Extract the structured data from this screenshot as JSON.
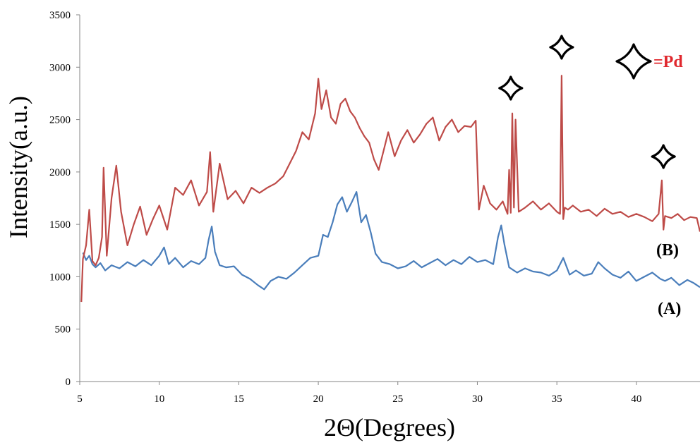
{
  "chart_data": {
    "type": "line",
    "title": "",
    "xlabel": "2Θ(Degrees)",
    "ylabel": "Intensity(a.u.)",
    "xlim": [
      5,
      44
    ],
    "ylim": [
      0,
      3500
    ],
    "x_ticks": [
      5,
      10,
      15,
      20,
      25,
      30,
      35,
      40
    ],
    "y_ticks": [
      0,
      500,
      1000,
      1500,
      2000,
      2500,
      3000,
      3500
    ],
    "grid": false,
    "series": [
      {
        "name": "(A)",
        "color": "#4A7EBB",
        "x": [
          5.2,
          5.4,
          5.6,
          5.8,
          6.0,
          6.3,
          6.6,
          7.0,
          7.5,
          8.0,
          8.5,
          9.0,
          9.5,
          10.0,
          10.3,
          10.6,
          11.0,
          11.5,
          12.0,
          12.5,
          12.9,
          13.1,
          13.3,
          13.5,
          13.8,
          14.2,
          14.7,
          15.2,
          15.7,
          16.2,
          16.6,
          17.0,
          17.5,
          18.0,
          18.5,
          19.0,
          19.5,
          20.0,
          20.3,
          20.6,
          20.9,
          21.2,
          21.5,
          21.8,
          22.1,
          22.4,
          22.7,
          23.0,
          23.3,
          23.6,
          24.0,
          24.5,
          25.0,
          25.5,
          26.0,
          26.5,
          27.0,
          27.5,
          28.0,
          28.5,
          29.0,
          29.5,
          30.0,
          30.5,
          31.0,
          31.3,
          31.5,
          31.7,
          32.0,
          32.5,
          33.0,
          33.5,
          34.0,
          34.5,
          35.0,
          35.4,
          35.8,
          36.2,
          36.7,
          37.2,
          37.6,
          38.0,
          38.5,
          39.0,
          39.5,
          40.0,
          40.5,
          41.0,
          41.5,
          41.8,
          42.2,
          42.7,
          43.2,
          43.6,
          44.0
        ],
        "values": [
          1230,
          1160,
          1200,
          1120,
          1090,
          1130,
          1060,
          1110,
          1080,
          1140,
          1100,
          1160,
          1110,
          1200,
          1280,
          1120,
          1180,
          1090,
          1150,
          1120,
          1180,
          1350,
          1480,
          1240,
          1110,
          1090,
          1100,
          1020,
          980,
          920,
          880,
          960,
          1000,
          980,
          1040,
          1110,
          1180,
          1200,
          1400,
          1380,
          1520,
          1690,
          1760,
          1620,
          1710,
          1810,
          1520,
          1590,
          1420,
          1220,
          1140,
          1120,
          1080,
          1100,
          1150,
          1090,
          1130,
          1170,
          1110,
          1160,
          1120,
          1190,
          1140,
          1160,
          1120,
          1380,
          1490,
          1310,
          1090,
          1040,
          1080,
          1050,
          1040,
          1010,
          1060,
          1180,
          1020,
          1060,
          1010,
          1030,
          1140,
          1080,
          1020,
          990,
          1050,
          960,
          1000,
          1040,
          980,
          960,
          990,
          920,
          970,
          940,
          900
        ]
      },
      {
        "name": "(B)",
        "color": "#BE4B48",
        "x": [
          5.1,
          5.2,
          5.4,
          5.6,
          5.8,
          6.0,
          6.2,
          6.4,
          6.5,
          6.7,
          7.0,
          7.3,
          7.6,
          8.0,
          8.4,
          8.8,
          9.2,
          9.6,
          10.0,
          10.5,
          11.0,
          11.5,
          12.0,
          12.5,
          13.0,
          13.2,
          13.4,
          13.8,
          14.3,
          14.8,
          15.3,
          15.8,
          16.3,
          16.8,
          17.3,
          17.8,
          18.2,
          18.6,
          19.0,
          19.4,
          19.8,
          20.0,
          20.2,
          20.5,
          20.8,
          21.1,
          21.4,
          21.7,
          22.0,
          22.3,
          22.6,
          22.9,
          23.2,
          23.5,
          23.8,
          24.1,
          24.4,
          24.8,
          25.2,
          25.6,
          26.0,
          26.4,
          26.8,
          27.2,
          27.6,
          28.0,
          28.4,
          28.8,
          29.2,
          29.6,
          29.9,
          30.1,
          30.4,
          30.8,
          31.2,
          31.6,
          31.9,
          32.0,
          32.1,
          32.2,
          32.3,
          32.4,
          32.6,
          33.0,
          33.5,
          34.0,
          34.5,
          35.0,
          35.2,
          35.3,
          35.4,
          35.5,
          35.7,
          36.0,
          36.5,
          37.0,
          37.5,
          38.0,
          38.5,
          39.0,
          39.5,
          40.0,
          40.5,
          41.0,
          41.4,
          41.6,
          41.7,
          41.8,
          42.2,
          42.6,
          43.0,
          43.4,
          43.8,
          44.0
        ],
        "values": [
          760,
          1170,
          1300,
          1640,
          1150,
          1110,
          1180,
          1380,
          2040,
          1200,
          1750,
          2060,
          1620,
          1300,
          1500,
          1670,
          1400,
          1550,
          1680,
          1450,
          1850,
          1780,
          1920,
          1680,
          1810,
          2190,
          1620,
          2080,
          1740,
          1820,
          1700,
          1850,
          1800,
          1850,
          1890,
          1960,
          2080,
          2200,
          2380,
          2310,
          2560,
          2890,
          2600,
          2780,
          2520,
          2460,
          2650,
          2700,
          2580,
          2520,
          2420,
          2340,
          2280,
          2120,
          2020,
          2200,
          2380,
          2150,
          2300,
          2400,
          2280,
          2360,
          2460,
          2520,
          2300,
          2430,
          2500,
          2380,
          2440,
          2430,
          2490,
          1640,
          1870,
          1700,
          1640,
          1720,
          1600,
          2020,
          1610,
          2560,
          1660,
          2500,
          1620,
          1660,
          1720,
          1640,
          1700,
          1620,
          1600,
          2920,
          1550,
          1660,
          1640,
          1680,
          1620,
          1640,
          1580,
          1650,
          1600,
          1620,
          1570,
          1600,
          1570,
          1530,
          1600,
          1920,
          1450,
          1580,
          1560,
          1600,
          1540,
          1570,
          1560,
          1430
        ]
      }
    ],
    "annotations": [
      {
        "text": "=Pd",
        "color": "#E0282E",
        "icon": "four-point-star-icon"
      },
      {
        "text": "(B)"
      },
      {
        "text": "(A)"
      }
    ],
    "marker_peaks_x": [
      32.1,
      35.3,
      41.7
    ],
    "marker_icon": "four-point-star-icon"
  }
}
